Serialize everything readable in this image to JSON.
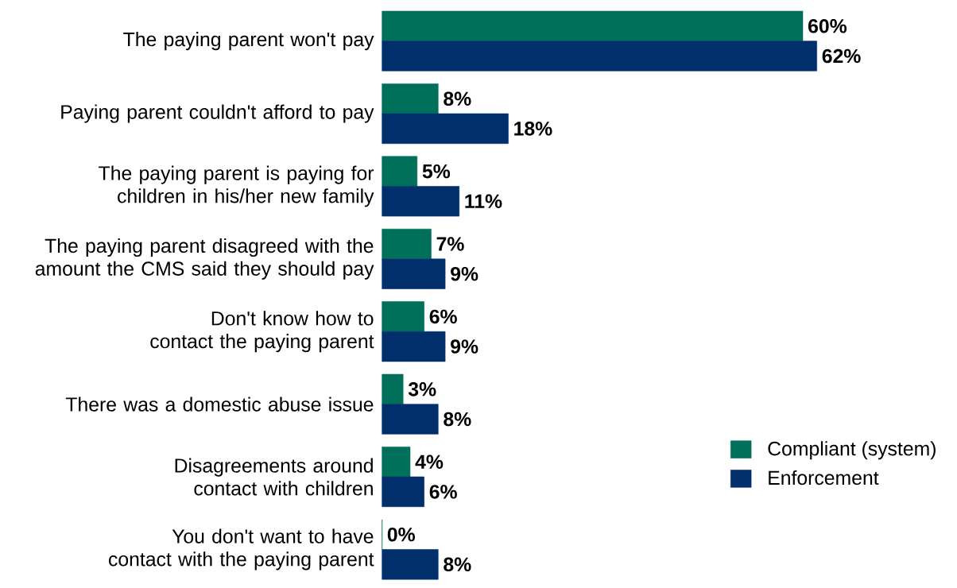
{
  "chart_data": {
    "type": "bar",
    "orientation": "horizontal",
    "categories": [
      "The paying parent won't pay",
      "Paying parent couldn't afford to pay",
      "The paying parent is paying for children in his/her new family",
      "The paying parent disagreed with the amount the CMS said they should pay",
      "Don't know how to contact the paying parent",
      "There was a domestic abuse issue",
      "Disagreements around contact with children",
      "You don't want to have contact with the paying parent"
    ],
    "series": [
      {
        "name": "Compliant (system)",
        "color": "#00705a",
        "values": [
          60,
          8,
          5,
          7,
          6,
          3,
          4,
          0
        ],
        "value_labels": [
          "60%",
          "8%",
          "5%",
          "7%",
          "6%",
          "3%",
          "4%",
          "0%"
        ]
      },
      {
        "name": "Enforcement",
        "color": "#002f6c",
        "values": [
          62,
          18,
          11,
          9,
          9,
          8,
          6,
          8
        ],
        "value_labels": [
          "62%",
          "18%",
          "11%",
          "9%",
          "9%",
          "8%",
          "6%",
          "8%"
        ]
      }
    ],
    "legend": "right"
  }
}
